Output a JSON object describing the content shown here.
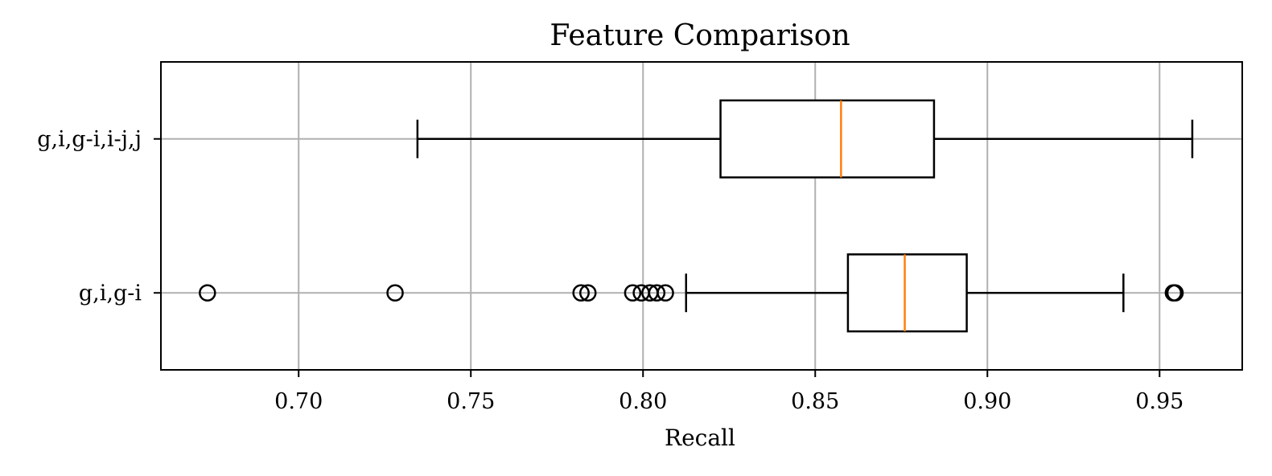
{
  "chart_data": {
    "type": "boxplot",
    "orientation": "horizontal",
    "title": "Feature Comparison",
    "xlabel": "Recall",
    "ylabel": "",
    "xlim": [
      0.66,
      0.974
    ],
    "x_ticks": [
      0.7,
      0.75,
      0.8,
      0.85,
      0.9,
      0.95
    ],
    "x_tick_labels": [
      "0.70",
      "0.75",
      "0.80",
      "0.85",
      "0.90",
      "0.95"
    ],
    "grid": true,
    "legend": "none",
    "colors": {
      "box": "#000000",
      "median": "#ff7f0e",
      "grid": "#b0b0b0"
    },
    "categories": [
      "g,i,g-i",
      "g,i,g-i,i-j,j"
    ],
    "boxes": [
      {
        "label": "g,i,g-i",
        "whisker_low": 0.8125,
        "q1": 0.8595,
        "median": 0.876,
        "q3": 0.894,
        "whisker_high": 0.9395,
        "outliers": [
          0.6735,
          0.728,
          0.782,
          0.784,
          0.797,
          0.7995,
          0.802,
          0.804,
          0.8065,
          0.954,
          0.9545
        ]
      },
      {
        "label": "g,i,g-i,i-j,j",
        "whisker_low": 0.7345,
        "q1": 0.8225,
        "median": 0.8575,
        "q3": 0.8845,
        "whisker_high": 0.9595,
        "outliers": []
      }
    ]
  }
}
